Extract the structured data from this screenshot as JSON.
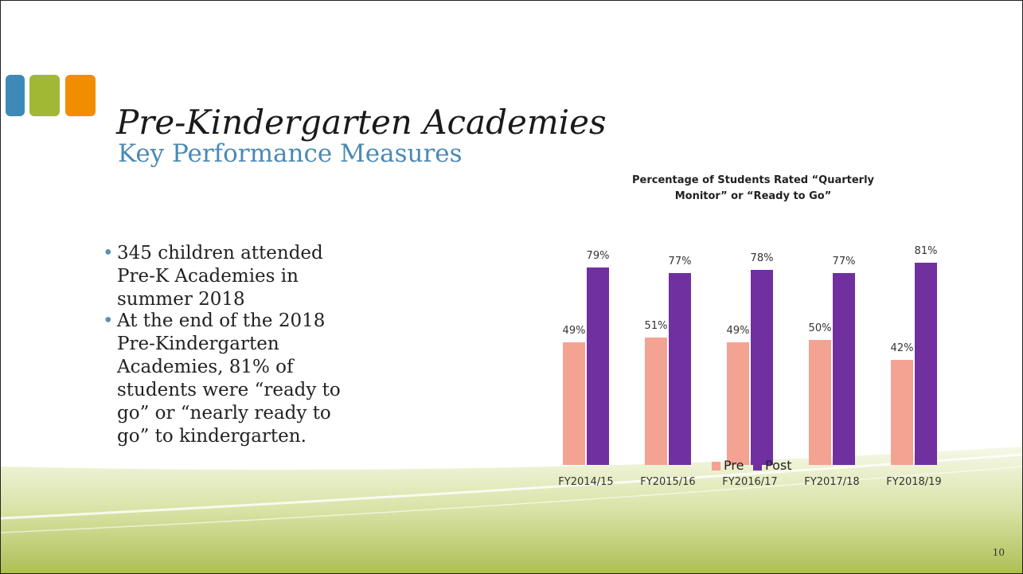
{
  "slide": {
    "title": "Pre-Kindergarten Academies",
    "subtitle": "Key Performance Measures",
    "bullets": [
      "345 children attended Pre-K Academies in summer 2018",
      "At the end of the 2018 Pre-Kindergarten Academies, 81% of students were “ready to go” or “nearly ready to go” to kindergarten."
    ],
    "page_number": "10"
  },
  "chart_data": {
    "type": "bar",
    "title": "Percentage of Students Rated “Quarterly Monitor” or “Ready to Go”",
    "categories": [
      "FY2014/15",
      "FY2015/16",
      "FY2016/17",
      "FY2017/18",
      "FY2018/19"
    ],
    "series": [
      {
        "name": "Pre",
        "color": "#f4a292",
        "values": [
          49,
          51,
          49,
          50,
          42
        ],
        "value_labels": [
          "49%",
          "51%",
          "49%",
          "50%",
          "42%"
        ]
      },
      {
        "name": "Post",
        "color": "#7030a0",
        "values": [
          79,
          77,
          78,
          77,
          81
        ],
        "value_labels": [
          "79%",
          "77%",
          "78%",
          "77%",
          "81%"
        ]
      }
    ],
    "legend": "bottom"
  }
}
